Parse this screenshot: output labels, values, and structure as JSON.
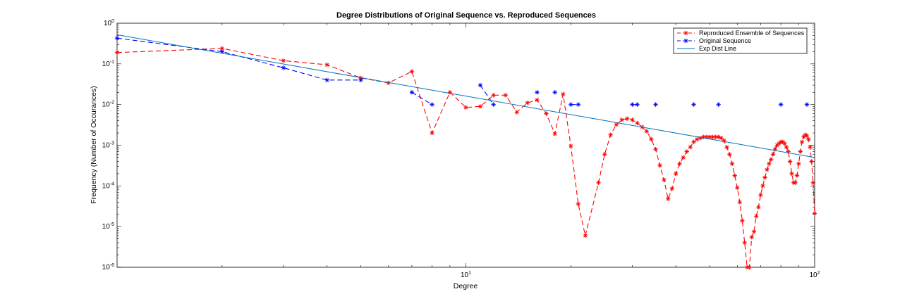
{
  "chart_data": {
    "type": "line",
    "title": "Degree Distributions of Original Sequence vs. Reproduced Sequences",
    "xlabel": "Degree",
    "ylabel": "Frequency (Number of Occurances)",
    "xscale": "log",
    "yscale": "log",
    "xlim": [
      1,
      100
    ],
    "ylim": [
      1e-06,
      1
    ],
    "x_tick_labels": [
      {
        "value": 10,
        "base": "10",
        "exp": "1"
      },
      {
        "value": 100,
        "base": "10",
        "exp": "2"
      }
    ],
    "y_tick_labels": [
      {
        "value": 1,
        "base": "10",
        "exp": "0"
      },
      {
        "value": 0.1,
        "base": "10",
        "exp": "-1"
      },
      {
        "value": 0.01,
        "base": "10",
        "exp": "-2"
      },
      {
        "value": 0.001,
        "base": "10",
        "exp": "-3"
      },
      {
        "value": 0.0001,
        "base": "10",
        "exp": "-4"
      },
      {
        "value": 1e-05,
        "base": "10",
        "exp": "-5"
      },
      {
        "value": 1e-06,
        "base": "10",
        "exp": "-6"
      }
    ],
    "grid": false,
    "legend_position": "top-right",
    "series": [
      {
        "name": "Reproduced Ensemble of Sequences",
        "color": "#ff0000",
        "line_style": "dashed",
        "marker": "asterisk",
        "x": [
          1,
          2,
          3,
          4,
          5,
          6,
          7,
          8,
          9,
          10,
          11,
          12,
          13,
          14,
          15,
          16,
          17,
          18,
          19,
          20,
          21,
          22,
          24,
          25,
          26,
          27,
          28,
          29,
          30,
          31,
          32,
          33,
          34,
          35,
          36,
          37,
          38,
          39,
          40,
          41,
          42,
          43,
          44,
          45,
          46,
          47,
          48,
          49,
          50,
          51,
          52,
          53,
          54,
          55,
          56,
          57,
          58,
          59,
          60,
          61,
          62,
          63,
          64,
          65,
          66,
          67,
          68,
          69,
          70,
          71,
          72,
          73,
          74,
          75,
          76,
          77,
          78,
          79,
          80,
          81,
          82,
          83,
          84,
          85,
          86,
          87,
          88,
          89,
          90,
          91,
          92,
          93,
          94,
          95,
          96,
          97,
          98,
          99,
          100
        ],
        "y": [
          0.19,
          0.24,
          0.12,
          0.095,
          0.045,
          0.034,
          0.065,
          0.002,
          0.02,
          0.0085,
          0.009,
          0.017,
          0.017,
          0.0065,
          0.011,
          0.013,
          0.006,
          0.0019,
          0.018,
          0.00095,
          3.6e-05,
          6e-06,
          0.00012,
          0.0006,
          0.0018,
          0.0032,
          0.0042,
          0.0045,
          0.0042,
          0.0035,
          0.0028,
          0.0022,
          0.0014,
          0.0008,
          0.00032,
          0.00014,
          4.8e-05,
          8.5e-05,
          0.0002,
          0.00035,
          0.0005,
          0.0007,
          0.0009,
          0.0012,
          0.0014,
          0.0015,
          0.0016,
          0.0016,
          0.0016,
          0.0016,
          0.0016,
          0.0016,
          0.0015,
          0.0013,
          0.0009,
          0.0006,
          0.00035,
          0.00018,
          9e-05,
          4e-05,
          1.4e-05,
          4e-06,
          1e-06,
          1e-06,
          5.5e-06,
          7.5e-06,
          1.8e-05,
          3e-05,
          6e-05,
          0.0001,
          0.00016,
          0.00025,
          0.00035,
          0.00045,
          0.0006,
          0.0008,
          0.001,
          0.0011,
          0.0012,
          0.0012,
          0.0011,
          0.0009,
          0.0007,
          0.0004,
          0.0002,
          0.00012,
          0.00012,
          0.00018,
          0.00035,
          0.0007,
          0.0012,
          0.0016,
          0.0018,
          0.0017,
          0.0014,
          0.0009,
          0.0004,
          0.00012,
          2.1e-05
        ]
      },
      {
        "name": "Original Sequence",
        "color": "#0000ff",
        "line_style": "dashed",
        "marker": "asterisk",
        "x": [
          1,
          2,
          3,
          4,
          5,
          6,
          7,
          8,
          9,
          10,
          11,
          12,
          13,
          14,
          15,
          16,
          17,
          18,
          19,
          20,
          21,
          22,
          23,
          24,
          25,
          26,
          27,
          28,
          29,
          30,
          31,
          32,
          33,
          34,
          35,
          36,
          37,
          38,
          39,
          40,
          41,
          42,
          43,
          44,
          45,
          46,
          47,
          48,
          49,
          50,
          51,
          52,
          53,
          54,
          55,
          56,
          57,
          58,
          59,
          60,
          61,
          62,
          63,
          64,
          65,
          66,
          67,
          68,
          69,
          70,
          71,
          72,
          73,
          74,
          75,
          76,
          77,
          78,
          79,
          80,
          81,
          82,
          83,
          84,
          85,
          86,
          87,
          88,
          89,
          90,
          91,
          92,
          93,
          94,
          95,
          96,
          97,
          98,
          99,
          100
        ],
        "y": [
          0.43,
          0.2,
          0.08,
          0.04,
          0.04,
          null,
          0.02,
          0.01,
          null,
          null,
          0.03,
          0.01,
          null,
          null,
          null,
          0.02,
          null,
          0.02,
          null,
          0.01,
          0.01,
          null,
          null,
          null,
          null,
          null,
          null,
          null,
          null,
          0.01,
          0.01,
          null,
          null,
          null,
          0.01,
          null,
          null,
          null,
          null,
          null,
          null,
          null,
          null,
          null,
          0.01,
          null,
          null,
          null,
          null,
          null,
          null,
          null,
          0.01,
          null,
          null,
          null,
          null,
          null,
          null,
          null,
          null,
          null,
          null,
          null,
          null,
          null,
          null,
          null,
          null,
          null,
          null,
          null,
          null,
          null,
          null,
          null,
          null,
          null,
          null,
          0.01,
          null,
          null,
          null,
          null,
          null,
          null,
          null,
          null,
          null,
          null,
          null,
          null,
          null,
          null,
          0.01,
          null,
          null,
          null,
          null,
          null
        ]
      },
      {
        "name": "Exp Dist Line",
        "color": "#0072bd",
        "line_style": "solid",
        "marker": "none",
        "x": [
          1,
          100
        ],
        "y": [
          0.52,
          0.0005
        ]
      }
    ]
  }
}
